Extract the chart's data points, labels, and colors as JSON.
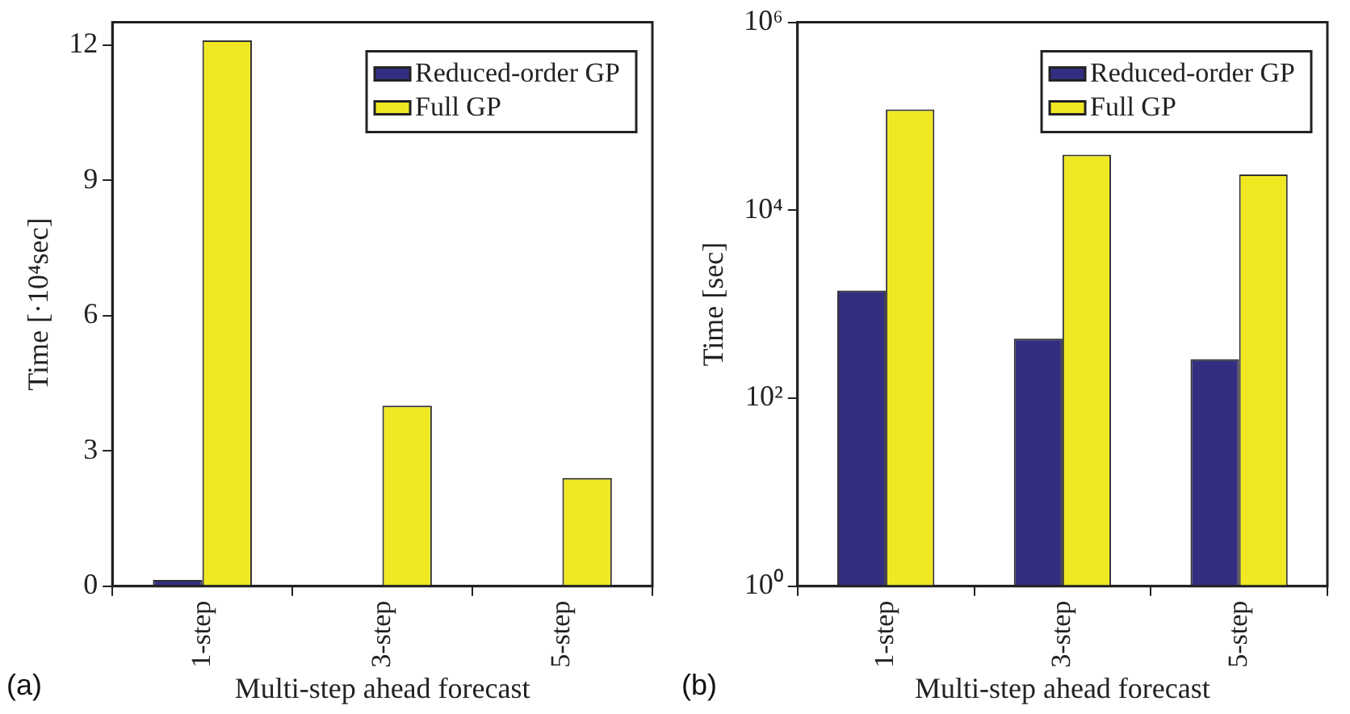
{
  "chart_data": [
    {
      "type": "bar",
      "categories": [
        "1-step",
        "3-step",
        "5-step"
      ],
      "xlabel": "Multi-step ahead forecast",
      "ylabel": "Time [·10⁴sec]",
      "series": [
        {
          "name": "Reduced-order GP",
          "color": "#332e80",
          "values": [
            0.14,
            null,
            0.03
          ]
        },
        {
          "name": "Full GP",
          "color": "#f0e823",
          "values": [
            12.1,
            4.0,
            2.4
          ]
        }
      ],
      "ylim": [
        0,
        12.5
      ],
      "yticks": [
        0,
        3,
        6,
        9,
        12
      ],
      "legend": "top right",
      "annotations": [
        "(a)"
      ]
    },
    {
      "type": "bar",
      "categories": [
        "1-step",
        "3-step",
        "5-step"
      ],
      "xlabel": "Multi-step ahead forecast",
      "ylabel": "Time [sec]",
      "series": [
        {
          "name": "Reduced-order GP",
          "color": "#332e80",
          "values": [
            1400,
            430,
            260
          ]
        },
        {
          "name": "Full GP",
          "color": "#f0e823",
          "values": [
            118000,
            39000,
            24000
          ]
        }
      ],
      "log": "y",
      "ylim": [
        1,
        1000000
      ],
      "yticks": [
        {
          "value": 1,
          "label": "10⁰"
        },
        {
          "value": 100,
          "label": "10²"
        },
        {
          "value": 10000,
          "label": "10⁴"
        },
        {
          "value": 1000000,
          "label": "10⁶"
        }
      ],
      "legend": "top right",
      "annotations": [
        "(b)"
      ]
    }
  ]
}
